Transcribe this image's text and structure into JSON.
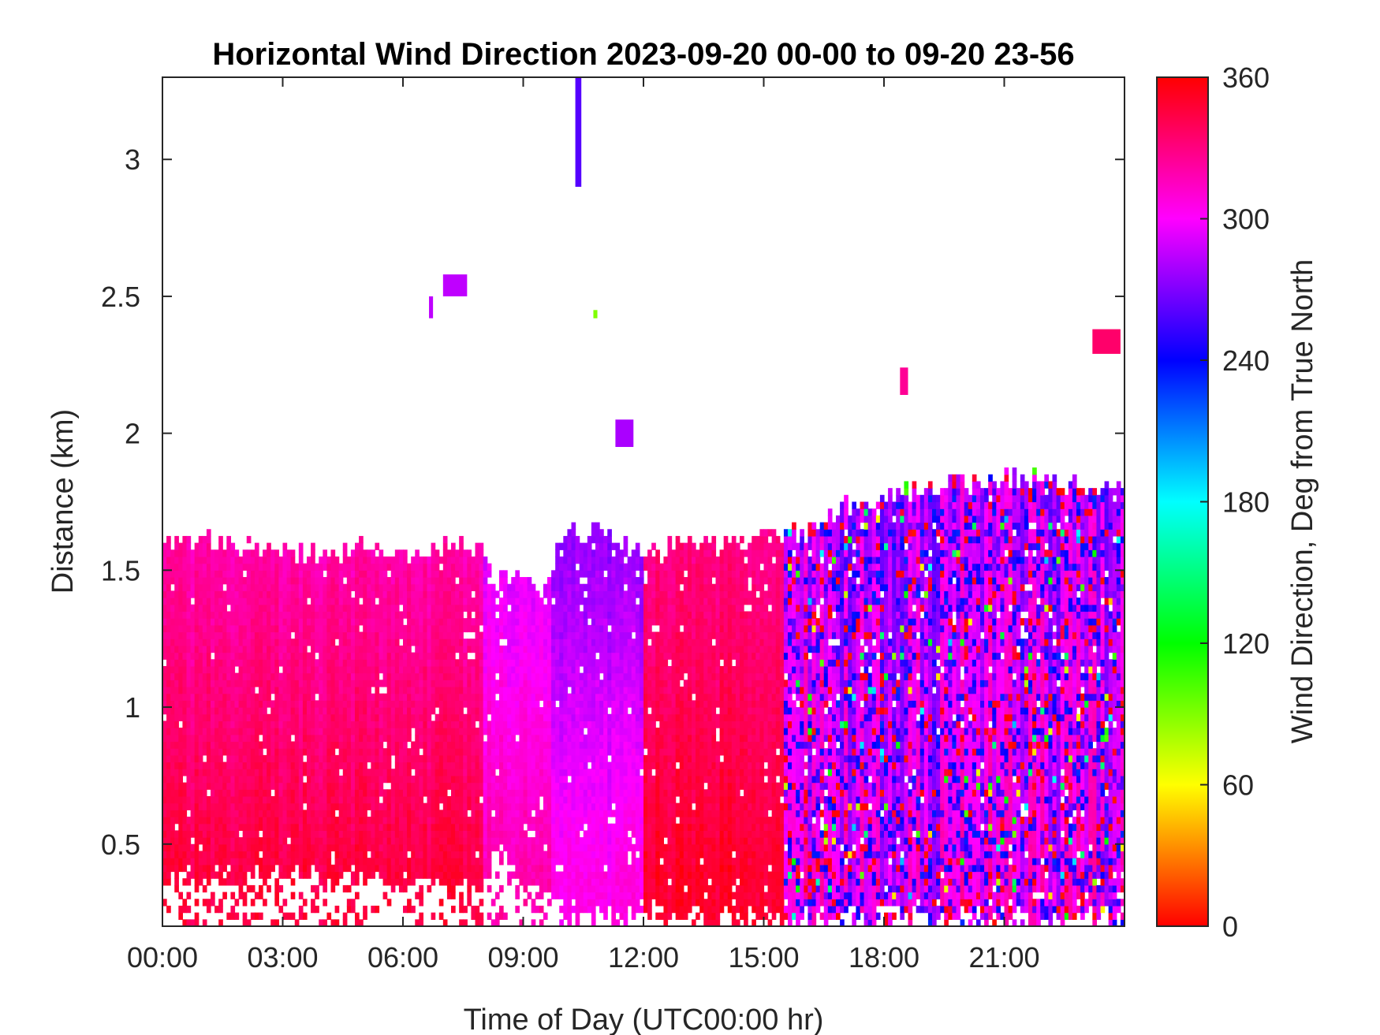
{
  "chart_data": {
    "type": "heatmap",
    "title": "Horizontal Wind Direction 2023-09-20 00-00 to 09-20 23-56",
    "xlabel": "Time of Day (UTC00:00 hr)",
    "ylabel": "Distance (km)",
    "colorbar_label": "Wind Direction, Deg from True North",
    "xlim_hours": [
      0,
      24
    ],
    "ylim_km": [
      0.2,
      3.3
    ],
    "x_ticks": [
      {
        "value": 0,
        "label": "00:00"
      },
      {
        "value": 3,
        "label": "03:00"
      },
      {
        "value": 6,
        "label": "06:00"
      },
      {
        "value": 9,
        "label": "09:00"
      },
      {
        "value": 12,
        "label": "12:00"
      },
      {
        "value": 15,
        "label": "15:00"
      },
      {
        "value": 18,
        "label": "18:00"
      },
      {
        "value": 21,
        "label": "21:00"
      }
    ],
    "y_ticks": [
      {
        "value": 0.5,
        "label": "0.5"
      },
      {
        "value": 1,
        "label": "1"
      },
      {
        "value": 1.5,
        "label": "1.5"
      },
      {
        "value": 2,
        "label": "2"
      },
      {
        "value": 2.5,
        "label": "2.5"
      },
      {
        "value": 3,
        "label": "3"
      }
    ],
    "colorbar": {
      "range": [
        0,
        360
      ],
      "colormap": "hsv",
      "ticks": [
        {
          "value": 0,
          "label": "0"
        },
        {
          "value": 60,
          "label": "60"
        },
        {
          "value": 120,
          "label": "120"
        },
        {
          "value": 180,
          "label": "180"
        },
        {
          "value": 240,
          "label": "240"
        },
        {
          "value": 300,
          "label": "300"
        },
        {
          "value": 360,
          "label": "360"
        }
      ]
    },
    "data_top_km": [
      {
        "hour": 0.0,
        "top": 1.58
      },
      {
        "hour": 1.0,
        "top": 1.6
      },
      {
        "hour": 2.0,
        "top": 1.58
      },
      {
        "hour": 3.0,
        "top": 1.55
      },
      {
        "hour": 4.0,
        "top": 1.55
      },
      {
        "hour": 5.0,
        "top": 1.57
      },
      {
        "hour": 6.0,
        "top": 1.55
      },
      {
        "hour": 7.0,
        "top": 1.58
      },
      {
        "hour": 8.0,
        "top": 1.57
      },
      {
        "hour": 8.3,
        "top": 1.45
      },
      {
        "hour": 9.0,
        "top": 1.48
      },
      {
        "hour": 9.5,
        "top": 1.4
      },
      {
        "hour": 10.0,
        "top": 1.62
      },
      {
        "hour": 11.0,
        "top": 1.63
      },
      {
        "hour": 12.0,
        "top": 1.55
      },
      {
        "hour": 13.0,
        "top": 1.58
      },
      {
        "hour": 14.0,
        "top": 1.58
      },
      {
        "hour": 15.0,
        "top": 1.62
      },
      {
        "hour": 16.0,
        "top": 1.62
      },
      {
        "hour": 17.0,
        "top": 1.72
      },
      {
        "hour": 18.0,
        "top": 1.75
      },
      {
        "hour": 19.0,
        "top": 1.8
      },
      {
        "hour": 20.0,
        "top": 1.8
      },
      {
        "hour": 21.0,
        "top": 1.82
      },
      {
        "hour": 22.0,
        "top": 1.82
      },
      {
        "hour": 23.0,
        "top": 1.8
      },
      {
        "hour": 24.0,
        "top": 1.78
      }
    ],
    "data_bottom_km": [
      {
        "hour": 0.0,
        "bottom": 0.32
      },
      {
        "hour": 3.0,
        "bottom": 0.35
      },
      {
        "hour": 6.0,
        "bottom": 0.34
      },
      {
        "hour": 8.0,
        "bottom": 0.3
      },
      {
        "hour": 8.3,
        "bottom": 0.45
      },
      {
        "hour": 9.0,
        "bottom": 0.35
      },
      {
        "hour": 9.5,
        "bottom": 0.3
      },
      {
        "hour": 10.0,
        "bottom": 0.22
      },
      {
        "hour": 12.0,
        "bottom": 0.2
      },
      {
        "hour": 24.0,
        "bottom": 0.2
      }
    ],
    "direction_regimes_deg": [
      {
        "from_hour": 0,
        "to_hour": 8,
        "upper_deg": 320,
        "lower_deg": 345
      },
      {
        "from_hour": 8,
        "to_hour": 9.7,
        "upper_deg": 295,
        "lower_deg": 320
      },
      {
        "from_hour": 9.7,
        "to_hour": 12,
        "upper_deg": 275,
        "lower_deg": 305
      },
      {
        "from_hour": 12,
        "to_hour": 15.5,
        "upper_deg": 330,
        "lower_deg": 350
      },
      {
        "from_hour": 15.5,
        "to_hour": 24,
        "upper_deg": 285,
        "lower_deg": 300,
        "variability": "high"
      }
    ],
    "isolated_features": [
      {
        "hour_from": 10.3,
        "hour_to": 10.45,
        "km_from": 2.9,
        "km_to": 3.3,
        "deg": 260
      },
      {
        "hour_from": 7.0,
        "hour_to": 7.6,
        "km_from": 2.5,
        "km_to": 2.58,
        "deg": 285
      },
      {
        "hour_from": 6.65,
        "hour_to": 6.75,
        "km_from": 2.42,
        "km_to": 2.5,
        "deg": 285
      },
      {
        "hour_from": 10.75,
        "hour_to": 10.85,
        "km_from": 2.42,
        "km_to": 2.45,
        "deg": 90
      },
      {
        "hour_from": 11.3,
        "hour_to": 11.75,
        "km_from": 1.95,
        "km_to": 2.05,
        "deg": 280
      },
      {
        "hour_from": 18.4,
        "hour_to": 18.6,
        "km_from": 2.14,
        "km_to": 2.24,
        "deg": 325
      },
      {
        "hour_from": 23.2,
        "hour_to": 23.9,
        "km_from": 2.29,
        "km_to": 2.38,
        "deg": 335
      }
    ]
  }
}
